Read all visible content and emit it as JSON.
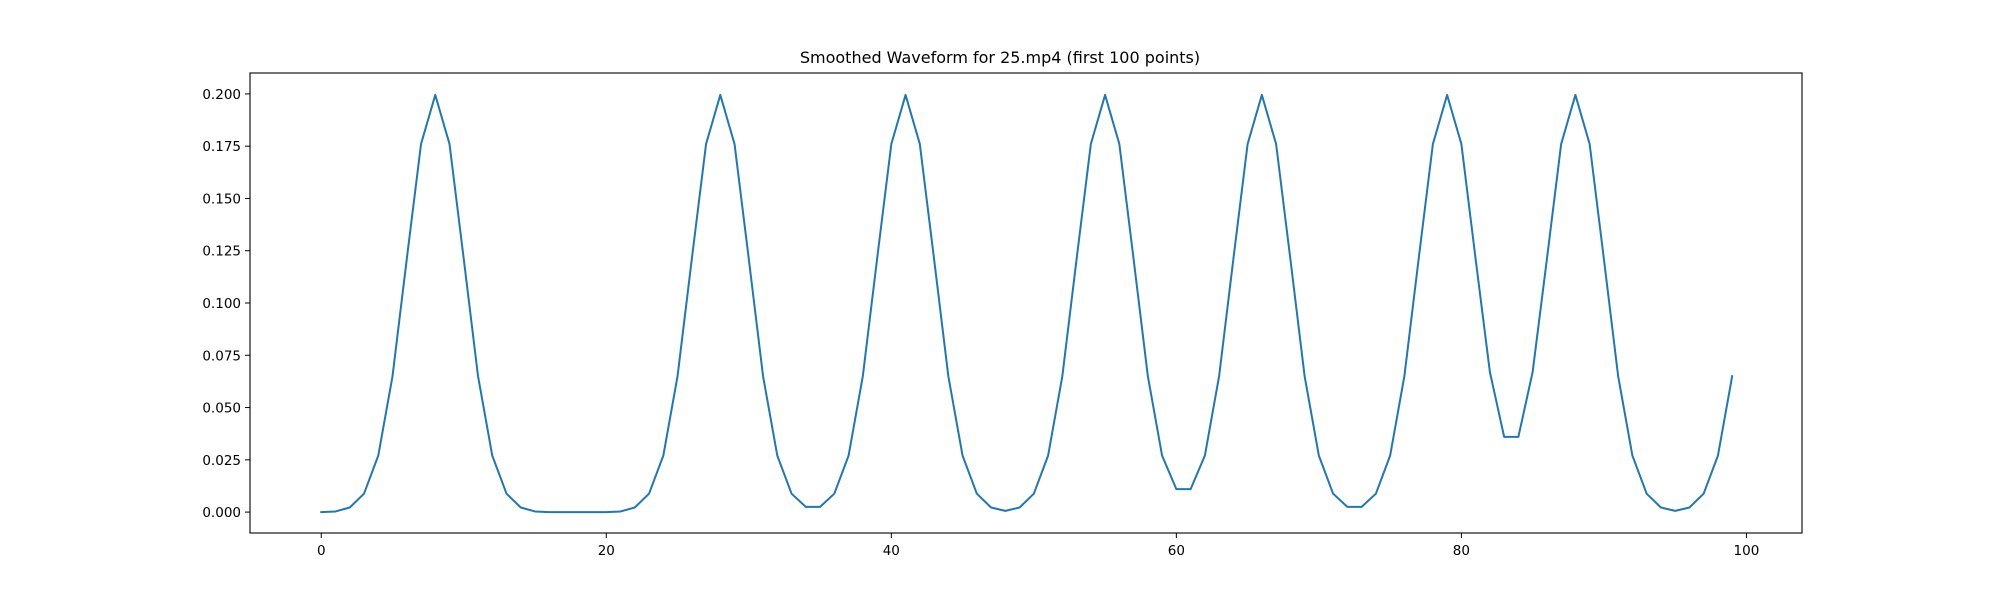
{
  "chart_data": {
    "type": "line",
    "title": "Smoothed Waveform for 25.mp4 (first 100 points)",
    "xlabel": "",
    "ylabel": "",
    "xlim": [
      -5,
      103.9
    ],
    "ylim": [
      -0.01,
      0.21
    ],
    "xticks": [
      0,
      20,
      40,
      60,
      80,
      100
    ],
    "yticks": [
      0.0,
      0.025,
      0.05,
      0.075,
      0.1,
      0.125,
      0.15,
      0.175,
      0.2
    ],
    "ytick_labels": [
      "0.000",
      "0.025",
      "0.050",
      "0.075",
      "0.100",
      "0.125",
      "0.150",
      "0.175",
      "0.200"
    ],
    "xtick_labels": [
      "0",
      "20",
      "40",
      "60",
      "80",
      "100"
    ],
    "grid": false,
    "series": [
      {
        "color": "#1f77b4",
        "x": [
          0,
          1,
          2,
          3,
          4,
          5,
          6,
          7,
          8,
          9,
          10,
          11,
          12,
          13,
          14,
          15,
          16,
          17,
          18,
          19,
          20,
          21,
          22,
          23,
          24,
          25,
          26,
          27,
          28,
          29,
          30,
          31,
          32,
          33,
          34,
          35,
          36,
          37,
          38,
          39,
          40,
          41,
          42,
          43,
          44,
          45,
          46,
          47,
          48,
          49,
          50,
          51,
          52,
          53,
          54,
          55,
          56,
          57,
          58,
          59,
          60,
          61,
          62,
          63,
          64,
          65,
          66,
          67,
          68,
          69,
          70,
          71,
          72,
          73,
          74,
          75,
          76,
          77,
          78,
          79,
          80,
          81,
          82,
          83,
          84,
          85,
          86,
          87,
          88,
          89,
          90,
          91,
          92,
          93,
          94,
          95,
          96,
          97,
          98,
          99
        ],
        "values": [
          0.0,
          0.0003,
          0.0022,
          0.0088,
          0.027,
          0.065,
          0.121,
          0.176,
          0.1995,
          0.176,
          0.121,
          0.065,
          0.027,
          0.0088,
          0.0022,
          0.0003,
          0.0,
          0.0,
          0.0,
          0.0,
          0.0,
          0.0003,
          0.0022,
          0.0088,
          0.027,
          0.065,
          0.121,
          0.176,
          0.1995,
          0.176,
          0.121,
          0.065,
          0.027,
          0.0088,
          0.0025,
          0.0025,
          0.0088,
          0.027,
          0.065,
          0.121,
          0.176,
          0.1995,
          0.176,
          0.121,
          0.065,
          0.027,
          0.0088,
          0.0022,
          0.0006,
          0.0022,
          0.0088,
          0.027,
          0.065,
          0.121,
          0.176,
          0.1995,
          0.176,
          0.121,
          0.065,
          0.027,
          0.011,
          0.011,
          0.027,
          0.065,
          0.121,
          0.176,
          0.1995,
          0.176,
          0.121,
          0.065,
          0.027,
          0.0088,
          0.0025,
          0.0025,
          0.0088,
          0.027,
          0.065,
          0.121,
          0.176,
          0.1995,
          0.176,
          0.121,
          0.067,
          0.036,
          0.036,
          0.067,
          0.121,
          0.176,
          0.1995,
          0.176,
          0.121,
          0.065,
          0.027,
          0.0088,
          0.0022,
          0.0006,
          0.0022,
          0.0088,
          0.027,
          0.065
        ]
      }
    ]
  }
}
